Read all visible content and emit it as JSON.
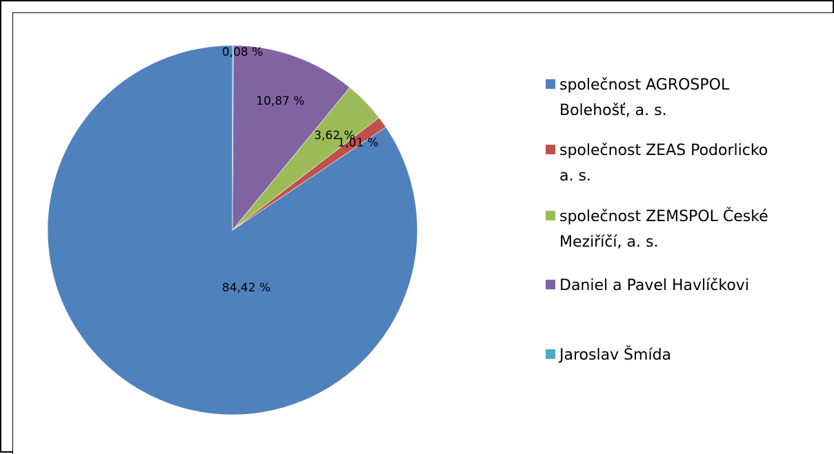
{
  "chart_data": {
    "type": "pie",
    "slices": [
      {
        "name": "společnost AGROSPOL Bolehošť, a. s.",
        "label_lines": [
          "společnost AGROSPOL",
          "Bolehošť, a. s."
        ],
        "value": 84.42,
        "label": "84,42 %",
        "color": "#4F81BD"
      },
      {
        "name": "společnost ZEAS Podorlicko a. s.",
        "label_lines": [
          "společnost ZEAS Podorlicko",
          "a. s."
        ],
        "value": 1.01,
        "label": "1,01 %",
        "color": "#C0504D"
      },
      {
        "name": "společnost ZEMSPOL České Meziříčí, a. s.",
        "label_lines": [
          "společnost ZEMSPOL České",
          "Meziříčí, a. s."
        ],
        "value": 3.62,
        "label": "3,62 %",
        "color": "#9BBB59"
      },
      {
        "name": "Daniel a Pavel Havlíčkovi",
        "label_lines": [
          "Daniel a Pavel Havlíčkovi"
        ],
        "value": 10.87,
        "label": "10,87 %",
        "color": "#8064A2"
      },
      {
        "name": "Jaroslav Šmída",
        "label_lines": [
          "Jaroslav Šmída"
        ],
        "value": 0.08,
        "label": "0,08 %",
        "color": "#4BACC6"
      }
    ],
    "start_direction": "top",
    "direction": "counterclockwise",
    "legend_position": "right"
  }
}
